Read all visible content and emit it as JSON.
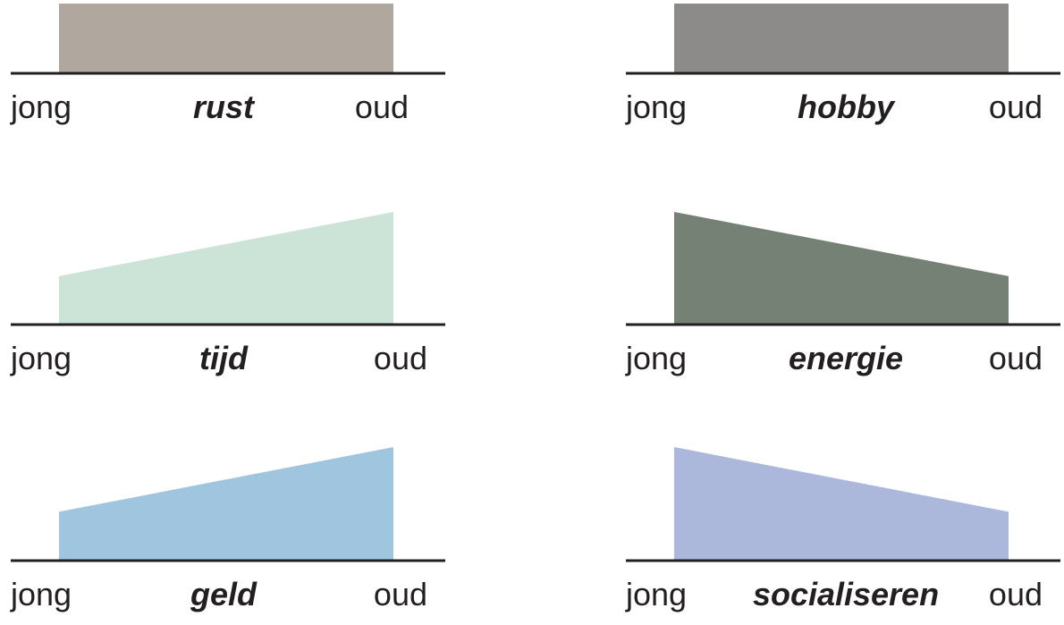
{
  "chart_data": [
    {
      "type": "area",
      "title": "rust",
      "x": [
        "jong",
        "oud"
      ],
      "values": [
        1,
        1
      ],
      "ylim": [
        0,
        1
      ],
      "color": "#b0a89e"
    },
    {
      "type": "area",
      "title": "hobby",
      "x": [
        "jong",
        "oud"
      ],
      "values": [
        1,
        1
      ],
      "ylim": [
        0,
        1
      ],
      "color": "#8c8b89"
    },
    {
      "type": "area",
      "title": "tijd",
      "x": [
        "jong",
        "oud"
      ],
      "values": [
        0.43,
        1
      ],
      "ylim": [
        0,
        1
      ],
      "color": "#cce4d8"
    },
    {
      "type": "area",
      "title": "energie",
      "x": [
        "jong",
        "oud"
      ],
      "values": [
        1,
        0.43
      ],
      "ylim": [
        0,
        1
      ],
      "color": "#758174"
    },
    {
      "type": "area",
      "title": "geld",
      "x": [
        "jong",
        "oud"
      ],
      "values": [
        0.43,
        1
      ],
      "ylim": [
        0,
        1
      ],
      "color": "#a0c5df"
    },
    {
      "type": "area",
      "title": "socialiseren",
      "x": [
        "jong",
        "oud"
      ],
      "values": [
        1,
        0.43
      ],
      "ylim": [
        0,
        1
      ],
      "color": "#abb7db"
    }
  ]
}
